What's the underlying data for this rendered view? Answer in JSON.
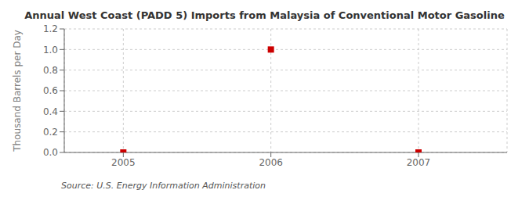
{
  "chart_data": {
    "type": "scatter",
    "title": "Annual West Coast (PADD 5) Imports from Malaysia of Conventional Motor Gasoline",
    "y_label": "Thousand Barrels per Day",
    "annotations": [
      "Source: U.S. Energy Information Administration"
    ],
    "x": [
      2005,
      2006,
      2007
    ],
    "values": [
      0.0,
      1.0,
      0.0
    ],
    "color": "#cc0000",
    "marker": "square",
    "xlim": [
      2004.6,
      2007.6
    ],
    "ylim": [
      0.0,
      1.2
    ],
    "xticks": [
      2005,
      2006,
      2007
    ],
    "yticks": [
      {
        "value": 0,
        "label": "0.0"
      },
      0.2,
      0.4,
      0.6,
      0.8,
      {
        "value": 1,
        "label": "1.0"
      },
      1.2
    ],
    "grid": true
  }
}
